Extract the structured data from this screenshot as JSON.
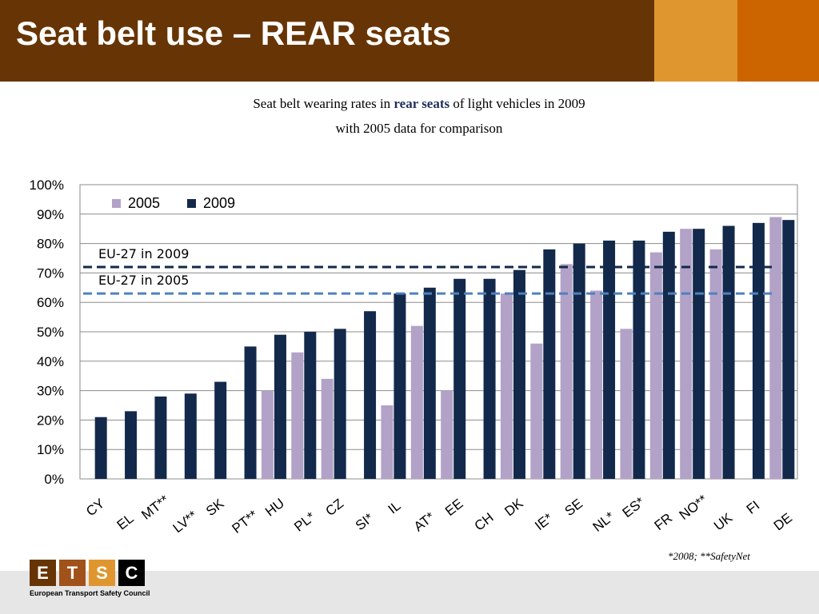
{
  "header": {
    "title": "Seat belt use – REAR seats"
  },
  "subtitle": {
    "line1_pre": "Seat belt wearing rates in ",
    "line1_emph": "rear seats",
    "line1_post": " of light vehicles in 2009",
    "line2": "with 2005 data for comparison"
  },
  "chart_data": {
    "type": "bar",
    "categories": [
      "CY",
      "EL",
      "MT**",
      "LV**",
      "SK",
      "PT**",
      "HU",
      "PL*",
      "CZ",
      "SI*",
      "IL",
      "AT*",
      "EE",
      "CH",
      "DK",
      "IE*",
      "SE",
      "NL*",
      "ES*",
      "FR",
      "NO**",
      "UK",
      "FI",
      "DE"
    ],
    "series": [
      {
        "name": "2005",
        "color": "#b3a2c7",
        "values": [
          null,
          null,
          null,
          null,
          null,
          null,
          30,
          43,
          34,
          null,
          25,
          52,
          30,
          null,
          63,
          46,
          73,
          64,
          51,
          77,
          85,
          78,
          null,
          89
        ]
      },
      {
        "name": "2009",
        "color": "#13294b",
        "values": [
          21,
          23,
          28,
          29,
          33,
          45,
          49,
          50,
          51,
          57,
          63,
          65,
          68,
          68,
          71,
          78,
          80,
          81,
          81,
          84,
          85,
          86,
          87,
          88
        ]
      }
    ],
    "ylim": [
      0,
      100
    ],
    "yticks": [
      0,
      10,
      20,
      30,
      40,
      50,
      60,
      70,
      80,
      90,
      100
    ],
    "ytick_suffix": "%",
    "grid": true,
    "legend": "top-left",
    "reference_lines": [
      {
        "label": "EU-27 in 2009",
        "value": 72,
        "color": "#13294b"
      },
      {
        "label": "EU-27 in 2005",
        "value": 63,
        "color": "#4f81bd"
      }
    ]
  },
  "footnote": "*2008; **SafetyNet",
  "logo": {
    "letters": [
      "E",
      "T",
      "S",
      "C"
    ],
    "name": "European Transport Safety Council",
    "colors": [
      "#673505",
      "#a0521a",
      "#e0962e",
      "#000000"
    ]
  }
}
